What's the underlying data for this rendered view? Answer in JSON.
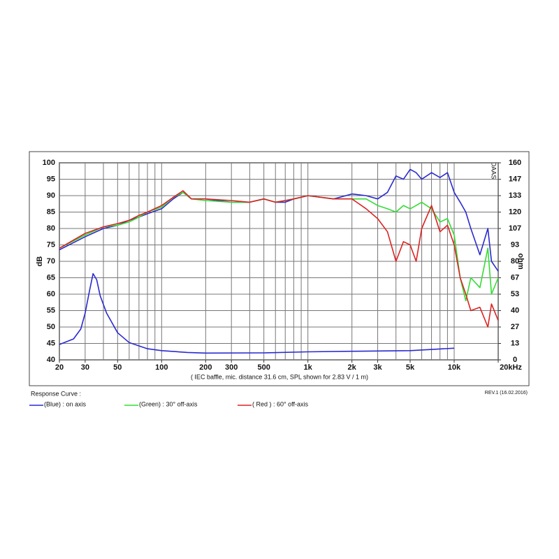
{
  "chart_data": {
    "type": "line",
    "caption": "( IEC baffle, mic. distance 31.6 cm, SPL shown for 2.83 V / 1 m)",
    "ylabel": "dB",
    "y2label": "ohm",
    "watermark": "DAAS",
    "legend_title": "Response Curve :",
    "revision": "REV.1 (16.02.2016)",
    "xscale": "log",
    "grid": true,
    "xlim": [
      20,
      20000
    ],
    "ylim": [
      40,
      100
    ],
    "y2lim": [
      0,
      160
    ],
    "xticks": [
      20,
      30,
      50,
      100,
      200,
      300,
      500,
      {
        "value": 1000,
        "label": "1k"
      },
      {
        "value": 2000,
        "label": "2k"
      },
      {
        "value": 3000,
        "label": "3k"
      },
      {
        "value": 5000,
        "label": "5k"
      },
      {
        "value": 10000,
        "label": "10k"
      },
      {
        "value": 20000,
        "label": "20kHz"
      }
    ],
    "xgrid": [
      20,
      30,
      40,
      50,
      60,
      70,
      80,
      90,
      100,
      200,
      300,
      400,
      500,
      600,
      700,
      800,
      900,
      1000,
      2000,
      3000,
      4000,
      5000,
      6000,
      7000,
      8000,
      9000,
      10000,
      20000
    ],
    "yticks": [
      40,
      45,
      50,
      55,
      60,
      65,
      70,
      75,
      80,
      85,
      90,
      95,
      100
    ],
    "y2ticks": [
      0,
      {
        "value": 13.33,
        "label": "13"
      },
      {
        "value": 26.67,
        "label": "27"
      },
      40,
      {
        "value": 53.33,
        "label": "53"
      },
      {
        "value": 66.67,
        "label": "67"
      },
      80,
      {
        "value": 93.33,
        "label": "93"
      },
      {
        "value": 106.67,
        "label": "107"
      },
      120,
      {
        "value": 133.33,
        "label": "133"
      },
      {
        "value": 146.67,
        "label": "147"
      },
      160
    ],
    "x": [
      20,
      30,
      40,
      50,
      60,
      70,
      80,
      100,
      120,
      140,
      160,
      200,
      300,
      400,
      500,
      600,
      700,
      800,
      1000,
      1500,
      2000,
      2500,
      3000,
      3500,
      4000,
      4500,
      5000,
      5500,
      6000,
      7000,
      8000,
      9000,
      10000,
      11000,
      12000,
      13000,
      15000,
      17000,
      18000,
      20000
    ],
    "series": [
      {
        "name": "(Blue) : on axis",
        "color": "#2a2ad0",
        "values": [
          73.5,
          77.5,
          80,
          81,
          82.5,
          83.5,
          84.5,
          86,
          89,
          91,
          89,
          89,
          88,
          88,
          89,
          88,
          88,
          89,
          90,
          89,
          90.5,
          90,
          89,
          91,
          96,
          95,
          98,
          97,
          95,
          97,
          95.5,
          97,
          91,
          88,
          85,
          80,
          72,
          80,
          70,
          67
        ]
      },
      {
        "name": "(Green) : 30° off-axis",
        "color": "#33dd33",
        "values": [
          74,
          78,
          80.5,
          81,
          82,
          83.5,
          85,
          86.5,
          89.5,
          91,
          89,
          88.5,
          88,
          88,
          89,
          88,
          88.5,
          89,
          90,
          89,
          89,
          89,
          87,
          86,
          85,
          87,
          86,
          87,
          88,
          86,
          82,
          83,
          78,
          65,
          58,
          65,
          62,
          74,
          60,
          65
        ]
      },
      {
        "name": "( Red ) : 60° off-axis",
        "color": "#dd2222",
        "values": [
          74,
          78.5,
          80.5,
          81.5,
          82.5,
          84,
          85,
          87,
          89.5,
          91.5,
          89,
          89,
          88.5,
          88,
          89,
          88,
          88.5,
          89,
          90,
          89,
          89,
          86,
          83,
          79,
          70,
          76,
          75,
          70,
          80,
          87,
          79,
          81,
          75,
          65,
          60,
          55,
          56,
          50,
          57,
          52
        ]
      },
      {
        "color": "#2a2ad0",
        "axis": "y2",
        "x": [
          20,
          25,
          28,
          30,
          32,
          34,
          36,
          38,
          42,
          50,
          60,
          80,
          100,
          150,
          200,
          500,
          1000,
          2000,
          5000,
          10000
        ],
        "values": [
          12.5,
          17,
          25,
          38,
          55,
          70,
          65,
          52,
          38,
          22,
          14,
          9,
          7.5,
          6,
          5.5,
          5.7,
          6.5,
          7,
          7.5,
          9.5
        ]
      }
    ]
  }
}
